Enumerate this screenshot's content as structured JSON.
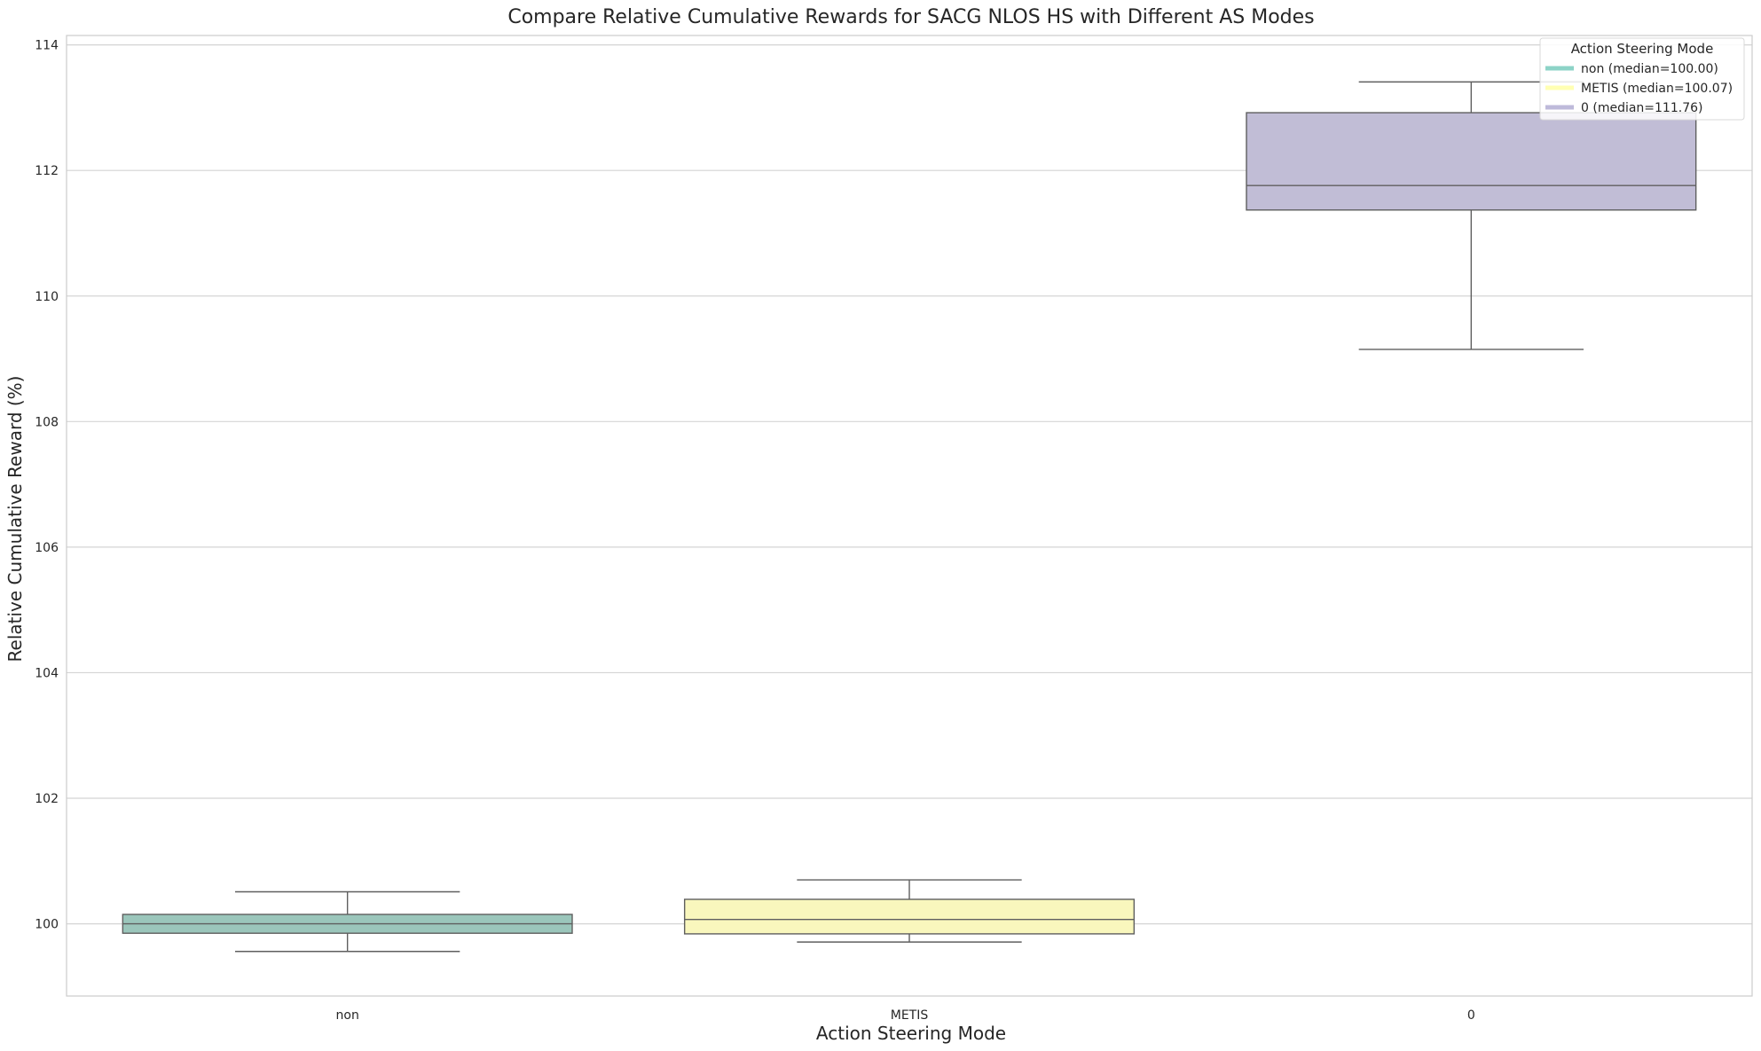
{
  "chart_data": {
    "type": "box",
    "title": "Compare Relative Cumulative Rewards for SACG NLOS HS with Different AS Modes",
    "xlabel": "Action Steering Mode",
    "ylabel": "Relative Cumulative Reward (%)",
    "categories": [
      "non",
      "METIS",
      "0"
    ],
    "ylim": [
      98.85,
      114.15
    ],
    "yticks": [
      100,
      102,
      104,
      106,
      108,
      110,
      112,
      114
    ],
    "grid": true,
    "boxes": [
      {
        "category": "non",
        "whisker_low": 99.56,
        "q1": 99.85,
        "median": 100.0,
        "q3": 100.15,
        "whisker_high": 100.51,
        "color": "#9bc6bb"
      },
      {
        "category": "METIS",
        "whisker_low": 99.71,
        "q1": 99.84,
        "median": 100.07,
        "q3": 100.39,
        "whisker_high": 100.7,
        "color": "#f9f7bd"
      },
      {
        "category": "0",
        "whisker_low": 109.15,
        "q1": 111.37,
        "median": 111.76,
        "q3": 112.92,
        "whisker_high": 113.41,
        "color": "#c1bdd6"
      }
    ],
    "legend": {
      "title": "Action Steering Mode",
      "position": "top-right",
      "entries": [
        {
          "label": "non (median=100.00)",
          "color": "#8dd3c7"
        },
        {
          "label": "METIS (median=100.07)",
          "color": "#ffffb3"
        },
        {
          "label": "0 (median=111.76)",
          "color": "#bebada"
        }
      ]
    }
  }
}
